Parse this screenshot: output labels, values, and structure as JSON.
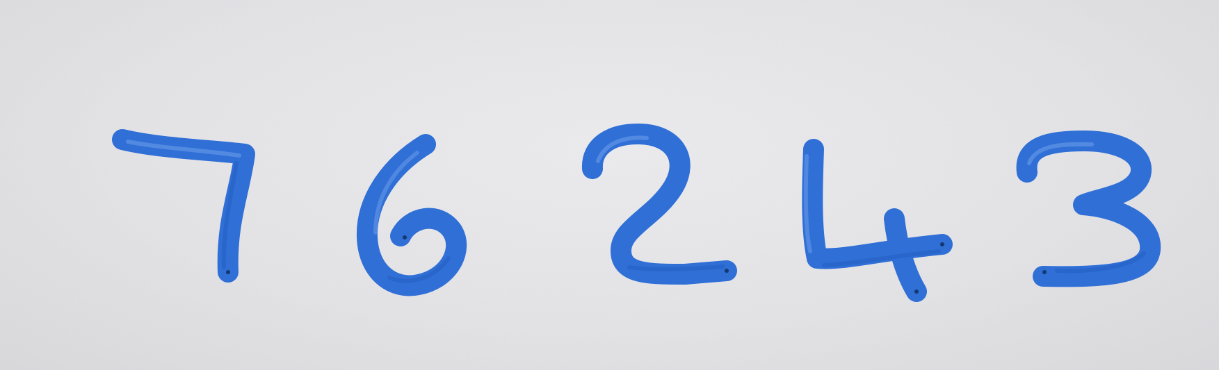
{
  "handwritten_number": "76243",
  "digits": [
    "7",
    "6",
    "2",
    "4",
    "3"
  ],
  "colors": {
    "paper": "#e3e3e5",
    "ink": "#2f6fd6",
    "ink_dark": "#1f56b8",
    "ink_highlight": "#6fa0ec"
  }
}
